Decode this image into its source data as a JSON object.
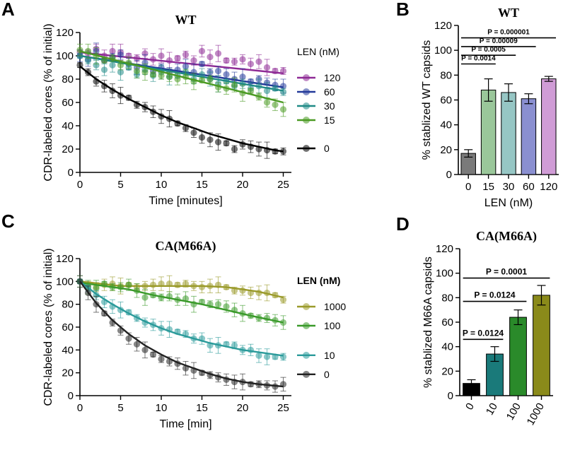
{
  "panels": {
    "A": "A",
    "B": "B",
    "C": "C",
    "D": "D"
  },
  "colors": {
    "wt_120": "#8e2a95",
    "wt_60": "#243a9a",
    "wt_30": "#1f8a86",
    "wt_15": "#4a9a22",
    "wt_0": "#000000",
    "m_1000": "#9a9a2a",
    "m_100": "#3a9a2a",
    "m_10": "#2a9a9a",
    "m_0": "#222222"
  },
  "chart_data": [
    {
      "id": "A",
      "type": "scatter",
      "title": "WT",
      "xlabel": "Time [minutes]",
      "ylabel": "CDR-labeled cores (% of initial)",
      "xlim": [
        0,
        26
      ],
      "ylim": [
        0,
        120
      ],
      "xticks": [
        "0",
        "5",
        "10",
        "15",
        "20",
        "25"
      ],
      "xtick_values": [
        0,
        5,
        10,
        15,
        20,
        25
      ],
      "yticks": [
        "0",
        "20",
        "40",
        "60",
        "80",
        "100",
        "120"
      ],
      "ytick_values": [
        0,
        20,
        40,
        60,
        80,
        100,
        120
      ],
      "legend_title": "LEN (nM)",
      "legend_position": "right",
      "series": [
        {
          "name": "120",
          "color": "#8e2a95",
          "x": [
            0,
            1,
            2,
            3,
            4,
            5,
            6,
            7,
            8,
            9,
            10,
            11,
            12,
            13,
            14,
            15,
            16,
            17,
            18,
            19,
            20,
            21,
            22,
            23,
            24,
            25
          ],
          "y": [
            103,
            102,
            106,
            100,
            104,
            103,
            100,
            98,
            102,
            97,
            100,
            96,
            98,
            101,
            96,
            104,
            99,
            102,
            96,
            95,
            97,
            93,
            95,
            90,
            87,
            87
          ],
          "fit": [
            [
              0,
              103
            ],
            [
              25,
              85
            ]
          ]
        },
        {
          "name": "60",
          "color": "#243a9a",
          "x": [
            0,
            1,
            2,
            3,
            4,
            5,
            6,
            7,
            8,
            9,
            10,
            11,
            12,
            13,
            14,
            15,
            16,
            17,
            18,
            19,
            20,
            21,
            22,
            23,
            24,
            25
          ],
          "y": [
            100,
            97,
            104,
            96,
            99,
            101,
            93,
            90,
            94,
            87,
            90,
            86,
            88,
            91,
            86,
            93,
            86,
            87,
            84,
            80,
            82,
            78,
            80,
            77,
            75,
            74
          ],
          "fit": [
            [
              0,
              100
            ],
            [
              25,
              73
            ]
          ]
        },
        {
          "name": "30",
          "color": "#1f8a86",
          "x": [
            0,
            1,
            2,
            3,
            4,
            5,
            6,
            7,
            8,
            9,
            10,
            11,
            12,
            13,
            14,
            15,
            16,
            17,
            18,
            19,
            20,
            21,
            22,
            23,
            24,
            25
          ],
          "y": [
            100,
            96,
            92,
            88,
            92,
            86,
            90,
            84,
            88,
            83,
            86,
            82,
            83,
            86,
            80,
            84,
            80,
            76,
            78,
            74,
            76,
            72,
            74,
            70,
            72,
            69
          ],
          "fit": [
            [
              0,
              100
            ],
            [
              25,
              70
            ]
          ]
        },
        {
          "name": "15",
          "color": "#4a9a22",
          "x": [
            0,
            1,
            2,
            3,
            4,
            5,
            6,
            7,
            8,
            9,
            10,
            11,
            12,
            13,
            14,
            15,
            16,
            17,
            18,
            19,
            20,
            21,
            22,
            23,
            24,
            25
          ],
          "y": [
            105,
            104,
            100,
            96,
            98,
            92,
            94,
            87,
            86,
            84,
            83,
            82,
            80,
            82,
            78,
            79,
            80,
            73,
            72,
            75,
            68,
            70,
            65,
            60,
            58,
            54
          ],
          "fit": [
            [
              0,
              104
            ],
            [
              25,
              60
            ]
          ]
        },
        {
          "name": "0",
          "color": "#000000",
          "x": [
            0,
            1,
            2,
            3,
            4,
            5,
            6,
            7,
            8,
            9,
            10,
            11,
            12,
            13,
            14,
            15,
            16,
            17,
            18,
            19,
            20,
            21,
            22,
            23,
            24,
            25
          ],
          "y": [
            92,
            86,
            78,
            74,
            70,
            66,
            64,
            58,
            56,
            52,
            48,
            46,
            42,
            38,
            34,
            30,
            28,
            26,
            25,
            20,
            24,
            22,
            20,
            19,
            18,
            18
          ],
          "fit": [
            [
              0,
              91
            ],
            [
              2,
              80
            ],
            [
              4,
              71
            ],
            [
              6,
              63
            ],
            [
              8,
              56
            ],
            [
              10,
              49
            ],
            [
              12,
              43
            ],
            [
              14,
              38
            ],
            [
              16,
              33
            ],
            [
              18,
              29
            ],
            [
              20,
              25
            ],
            [
              22,
              22
            ],
            [
              24,
              19
            ],
            [
              25,
              18
            ]
          ]
        }
      ]
    },
    {
      "id": "B",
      "type": "bar",
      "title": "WT",
      "xlabel": "LEN (nM)",
      "ylabel": "% stablized WT capsids",
      "ylim": [
        0,
        120
      ],
      "yticks": [
        "0",
        "20",
        "40",
        "60",
        "80",
        "100",
        "120"
      ],
      "ytick_values": [
        0,
        20,
        40,
        60,
        80,
        100,
        120
      ],
      "categories": [
        "0",
        "15",
        "30",
        "60",
        "120"
      ],
      "values": [
        17,
        68,
        66,
        61,
        77
      ],
      "errors": [
        3,
        9,
        7,
        4,
        2
      ],
      "bar_colors": [
        "#7a7a7a",
        "#9ac79a",
        "#96c6c4",
        "#8a8fd0",
        "#d09cd6"
      ],
      "significance": [
        {
          "label": "P = 0.0014",
          "from": 0,
          "to": 1,
          "y": 89
        },
        {
          "label": "P = 0.0005",
          "from": 0,
          "to": 2,
          "y": 96
        },
        {
          "label": "P = 0.00009",
          "from": 0,
          "to": 3,
          "y": 103
        },
        {
          "label": "P = 0.000001",
          "from": 0,
          "to": 4,
          "y": 110
        }
      ]
    },
    {
      "id": "C",
      "type": "scatter",
      "title": "CA(M66A)",
      "xlabel": "Time [min]",
      "ylabel": "CDR-labeled cores (% of initial)",
      "xlim": [
        0,
        26
      ],
      "ylim": [
        0,
        120
      ],
      "xticks": [
        "0",
        "5",
        "10",
        "15",
        "20",
        "25"
      ],
      "xtick_values": [
        0,
        5,
        10,
        15,
        20,
        25
      ],
      "yticks": [
        "0",
        "20",
        "40",
        "60",
        "80",
        "100",
        "120"
      ],
      "ytick_values": [
        0,
        20,
        40,
        60,
        80,
        100,
        120
      ],
      "legend_title": "LEN (nM)",
      "legend_position": "right",
      "series": [
        {
          "name": "1000",
          "color": "#9a9a2a",
          "x": [
            0,
            1,
            2,
            3,
            4,
            5,
            6,
            7,
            8,
            9,
            10,
            11,
            12,
            13,
            14,
            15,
            16,
            17,
            18,
            19,
            20,
            21,
            22,
            23,
            24,
            25
          ],
          "y": [
            100,
            97,
            95,
            97,
            98,
            96,
            97,
            95,
            96,
            97,
            98,
            98,
            97,
            98,
            96,
            95,
            96,
            97,
            95,
            92,
            92,
            90,
            90,
            90,
            88,
            84
          ],
          "fit": [
            [
              0,
              100
            ],
            [
              5,
              96
            ],
            [
              10,
              96
            ],
            [
              15,
              96
            ],
            [
              18,
              95
            ],
            [
              20,
              93
            ],
            [
              22,
              91
            ],
            [
              25,
              86
            ]
          ]
        },
        {
          "name": "100",
          "color": "#3a9a2a",
          "x": [
            0,
            1,
            2,
            3,
            4,
            5,
            6,
            7,
            8,
            9,
            10,
            11,
            12,
            13,
            14,
            15,
            16,
            17,
            18,
            19,
            20,
            21,
            22,
            23,
            24,
            25
          ],
          "y": [
            100,
            95,
            94,
            98,
            95,
            95,
            97,
            92,
            86,
            88,
            86,
            87,
            84,
            85,
            80,
            82,
            80,
            80,
            78,
            75,
            72,
            70,
            68,
            68,
            66,
            64
          ],
          "fit": [
            [
              0,
              99
            ],
            [
              3,
              96
            ],
            [
              6,
              93
            ],
            [
              9,
              88
            ],
            [
              12,
              84
            ],
            [
              15,
              80
            ],
            [
              18,
              75
            ],
            [
              21,
              70
            ],
            [
              23,
              67
            ],
            [
              25,
              64
            ]
          ]
        },
        {
          "name": "10",
          "color": "#2a9a9a",
          "x": [
            0,
            1,
            2,
            3,
            4,
            5,
            6,
            7,
            8,
            9,
            10,
            11,
            12,
            13,
            14,
            15,
            16,
            17,
            18,
            19,
            20,
            21,
            22,
            23,
            24,
            25
          ],
          "y": [
            100,
            94,
            88,
            82,
            78,
            75,
            73,
            68,
            64,
            62,
            59,
            58,
            56,
            54,
            50,
            50,
            44,
            44,
            45,
            44,
            40,
            40,
            35,
            34,
            34,
            34
          ],
          "fit": [
            [
              0,
              100
            ],
            [
              2,
              89
            ],
            [
              4,
              80
            ],
            [
              6,
              72
            ],
            [
              8,
              65
            ],
            [
              10,
              59
            ],
            [
              12,
              54
            ],
            [
              14,
              50
            ],
            [
              16,
              46
            ],
            [
              18,
              43
            ],
            [
              20,
              40
            ],
            [
              22,
              38
            ],
            [
              25,
              35
            ]
          ]
        },
        {
          "name": "0",
          "color": "#222222",
          "x": [
            0,
            1,
            2,
            3,
            4,
            5,
            6,
            7,
            8,
            9,
            10,
            11,
            12,
            13,
            14,
            15,
            16,
            17,
            18,
            19,
            20,
            21,
            22,
            23,
            24,
            25
          ],
          "y": [
            100,
            90,
            80,
            72,
            64,
            57,
            50,
            45,
            40,
            36,
            32,
            30,
            28,
            24,
            22,
            20,
            18,
            16,
            14,
            12,
            12,
            10,
            10,
            9,
            8,
            10
          ],
          "fit": [
            [
              0,
              100
            ],
            [
              2,
              81
            ],
            [
              4,
              66
            ],
            [
              6,
              54
            ],
            [
              8,
              44
            ],
            [
              10,
              36
            ],
            [
              12,
              29
            ],
            [
              14,
              24
            ],
            [
              16,
              19
            ],
            [
              18,
              15
            ],
            [
              20,
              12
            ],
            [
              22,
              10
            ],
            [
              25,
              8
            ]
          ]
        }
      ]
    },
    {
      "id": "D",
      "type": "bar",
      "title": "CA(M66A)",
      "xlabel": "LEN (nM)",
      "ylabel": "% stablized M66A capsids",
      "ylim": [
        0,
        120
      ],
      "yticks": [
        "0",
        "20",
        "40",
        "60",
        "80",
        "100",
        "120"
      ],
      "ytick_values": [
        0,
        20,
        40,
        60,
        80,
        100,
        120
      ],
      "categories": [
        "0",
        "10",
        "100",
        "1000"
      ],
      "values": [
        10,
        34,
        64,
        82
      ],
      "errors": [
        3,
        6,
        6,
        8
      ],
      "bar_colors": [
        "#000000",
        "#1a7a7a",
        "#2a8a2a",
        "#8a8a1a"
      ],
      "significance": [
        {
          "label": "P = 0.0124",
          "from": 0,
          "to": 1,
          "y": 46
        },
        {
          "label": "P = 0.0124",
          "from": 0,
          "to": 2,
          "y": 77
        },
        {
          "label": "P = 0.0001",
          "from": 0,
          "to": 3,
          "y": 96
        }
      ]
    }
  ]
}
